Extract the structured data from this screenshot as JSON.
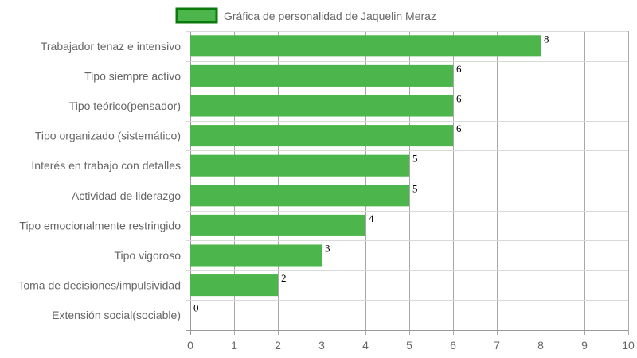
{
  "chart_data": {
    "type": "bar",
    "orientation": "horizontal",
    "legend": {
      "position": "top",
      "entries": [
        {
          "name": "Gráfica de personalidad de Jaquelin Meraz",
          "color": "#4cb54c",
          "border_color": "#0a7a0a"
        }
      ]
    },
    "categories": [
      "Trabajador tenaz e intensivo",
      "Tipo siempre activo",
      "Tipo teórico(pensador)",
      "Tipo organizado (sistemático)",
      "Interés en trabajo con detalles",
      "Actividad de liderazgo",
      "Tipo emocionalmente restringido",
      "Tipo vigoroso",
      "Toma de decisiones/impulsividad",
      "Extensión social(sociable)"
    ],
    "series": [
      {
        "name": "Gráfica de personalidad de Jaquelin Meraz",
        "values": [
          8,
          6,
          6,
          6,
          5,
          5,
          4,
          3,
          2,
          0
        ],
        "color": "#4cb54c"
      }
    ],
    "value_labels": [
      "8",
      "6",
      "6",
      "6",
      "5",
      "5",
      "4",
      "3",
      "2",
      "0"
    ],
    "xlim": [
      0,
      10
    ],
    "x_ticks": [
      "0",
      "1",
      "2",
      "3",
      "4",
      "5",
      "6",
      "7",
      "8",
      "9",
      "10"
    ],
    "grid": true,
    "grid_color": "#d9d9d9",
    "axis_color": "#9a9a9a",
    "title": "",
    "xlabel": "",
    "ylabel": ""
  }
}
